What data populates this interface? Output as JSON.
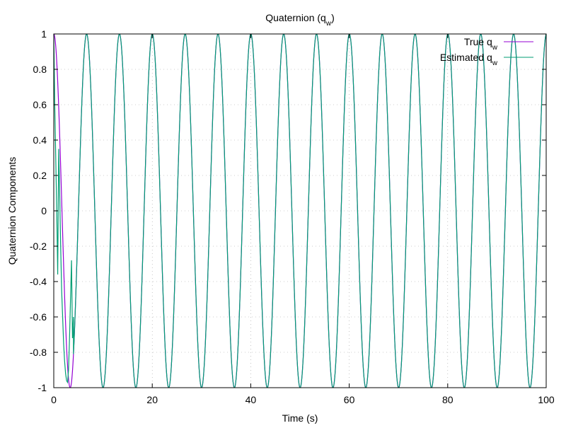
{
  "chart_data": {
    "type": "line",
    "title": {
      "main": "Quaternion (q",
      "sub": "w",
      "tail": ")"
    },
    "xlabel": "Time (s)",
    "ylabel": "Quaternion Components",
    "xlim": [
      0,
      100
    ],
    "ylim": [
      -1,
      1
    ],
    "xticks": [
      0,
      20,
      40,
      60,
      80,
      100
    ],
    "xtick_labels": [
      "0",
      "20",
      "40",
      "60",
      "80",
      "100"
    ],
    "yticks": [
      -1,
      -0.8,
      -0.6,
      -0.4,
      -0.2,
      0,
      0.2,
      0.4,
      0.6,
      0.8,
      1
    ],
    "ytick_labels": [
      "-1",
      "-0.8",
      "-0.6",
      "-0.4",
      "-0.2",
      "0",
      "0.2",
      "0.4",
      "0.6",
      "0.8",
      "1"
    ],
    "grid": true,
    "legend_position": "top-right",
    "series": [
      {
        "name": {
          "main": "True q",
          "sub": "w"
        },
        "color": "#9400d3",
        "function": "cos",
        "period": 6.67,
        "amplitude": 1,
        "x_range": [
          0,
          100
        ]
      },
      {
        "name": {
          "main": "Estimated q",
          "sub": "w"
        },
        "color": "#009e73",
        "function": "cos",
        "period": 6.67,
        "amplitude": 1,
        "x_range": [
          0,
          100
        ],
        "initial_transient": {
          "x": [
            0,
            0.2,
            0.4,
            0.6,
            0.8,
            1.0,
            1.2,
            1.4,
            1.6,
            1.8,
            2.0,
            2.2,
            2.4,
            2.6,
            2.8,
            3.0,
            3.2,
            3.4,
            3.6,
            3.8,
            4.0
          ],
          "y": [
            1,
            0.6,
            0.3,
            0.0,
            -0.36,
            0.35,
            0.1,
            -0.2,
            -0.45,
            -0.6,
            -0.75,
            -0.85,
            -0.92,
            -0.96,
            -0.97,
            -0.9,
            -0.72,
            -0.5,
            -0.28,
            -0.72,
            -0.6
          ]
        }
      }
    ]
  }
}
